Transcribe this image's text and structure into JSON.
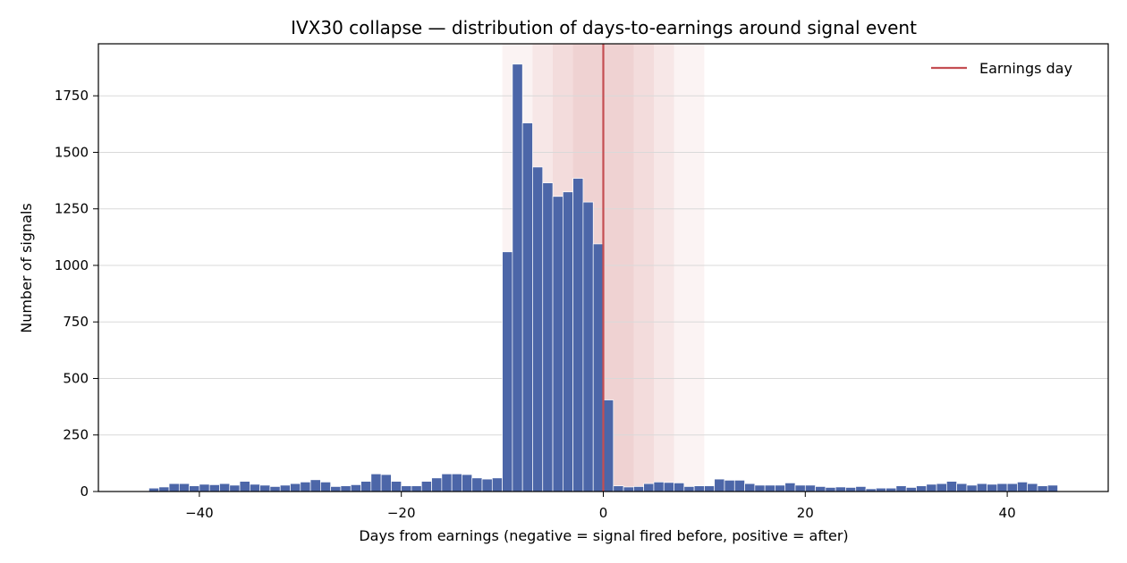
{
  "chart_data": {
    "type": "bar",
    "title": "IVX30 collapse — distribution of days-to-earnings around signal event",
    "xlabel": "Days from earnings (negative = signal fired before, positive = after)",
    "ylabel": "Number of signals",
    "xlim": [
      -50,
      50
    ],
    "ylim": [
      0,
      1980
    ],
    "xticks": [
      -40,
      -20,
      0,
      20,
      40
    ],
    "xtick_labels": [
      "−40",
      "−20",
      "0",
      "20",
      "40"
    ],
    "yticks": [
      0,
      250,
      500,
      750,
      1000,
      1250,
      1500,
      1750
    ],
    "ytick_labels": [
      "0",
      "250",
      "500",
      "750",
      "1000",
      "1250",
      "1500",
      "1750"
    ],
    "grid": "y",
    "legend": {
      "placement": "top-right",
      "entries": [
        "Earnings day"
      ]
    },
    "bin_start": -45,
    "bin_width": 1,
    "x": [
      -45,
      -44,
      -43,
      -42,
      -41,
      -40,
      -39,
      -38,
      -37,
      -36,
      -35,
      -34,
      -33,
      -32,
      -31,
      -30,
      -29,
      -28,
      -27,
      -26,
      -25,
      -24,
      -23,
      -22,
      -21,
      -20,
      -19,
      -18,
      -17,
      -16,
      -15,
      -14,
      -13,
      -12,
      -11,
      -10,
      -9,
      -8,
      -7,
      -6,
      -5,
      -4,
      -3,
      -2,
      -1,
      0,
      1,
      2,
      3,
      4,
      5,
      6,
      7,
      8,
      9,
      10,
      11,
      12,
      13,
      14,
      15,
      16,
      17,
      18,
      19,
      20,
      21,
      22,
      23,
      24,
      25,
      26,
      27,
      28,
      29,
      30,
      31,
      32,
      33,
      34,
      35,
      36,
      37,
      38,
      39,
      40,
      41,
      42,
      43,
      44
    ],
    "values": [
      15,
      20,
      35,
      35,
      25,
      32,
      30,
      35,
      28,
      45,
      32,
      28,
      22,
      28,
      35,
      42,
      52,
      42,
      22,
      25,
      30,
      45,
      78,
      75,
      45,
      25,
      25,
      45,
      60,
      78,
      78,
      75,
      60,
      55,
      60,
      1060,
      1890,
      1630,
      1435,
      1365,
      1305,
      1325,
      1385,
      1280,
      1095,
      405,
      25,
      20,
      22,
      35,
      42,
      40,
      38,
      22,
      25,
      25,
      55,
      50,
      50,
      35,
      28,
      28,
      28,
      38,
      28,
      28,
      22,
      18,
      20,
      18,
      22,
      12,
      15,
      15,
      25,
      18,
      25,
      32,
      35,
      45,
      35,
      28,
      35,
      32,
      35,
      35,
      42,
      35,
      25,
      28
    ],
    "series": [
      {
        "name": "",
        "color": "#4c66a8",
        "values_ref": "values"
      }
    ],
    "reference_line": {
      "x": 0,
      "label": "Earnings day",
      "color": "#c44e52"
    },
    "shaded_windows": [
      [
        -10,
        10
      ],
      [
        -7,
        7
      ],
      [
        -5,
        5
      ],
      [
        -3,
        3
      ]
    ],
    "shade_color": "#c44e52"
  }
}
